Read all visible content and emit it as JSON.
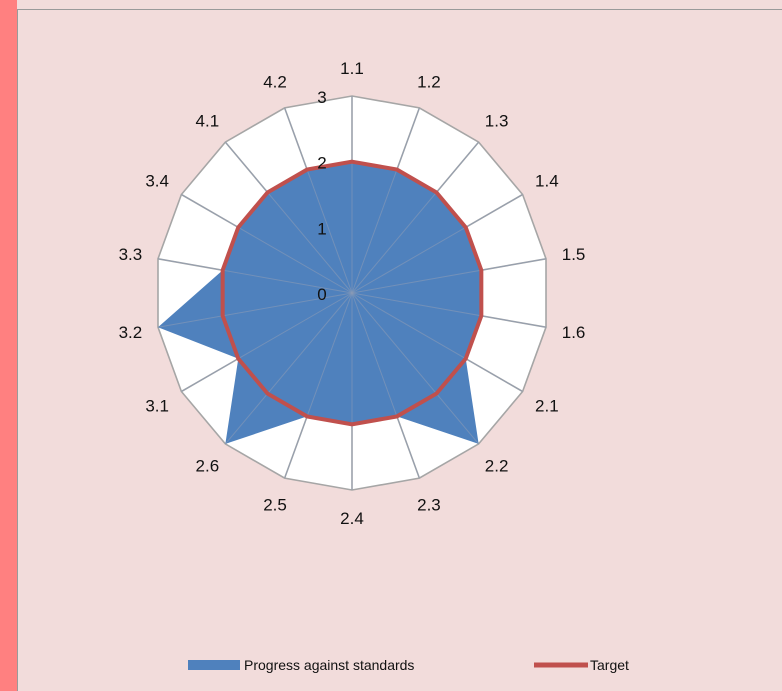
{
  "colors": {
    "background": "#f2dcdb",
    "accent_bar": "#ff8080",
    "progress_fill": "#4f81bd",
    "target_line": "#c0504d",
    "grid": "#a6a6a6"
  },
  "chart_data": {
    "type": "radar",
    "categories": [
      "1.1",
      "1.2",
      "1.3",
      "1.4",
      "1.5",
      "1.6",
      "2.1",
      "2.2",
      "2.3",
      "2.4",
      "2.5",
      "2.6",
      "3.1",
      "3.2",
      "3.3",
      "3.4",
      "4.1",
      "4.2"
    ],
    "rlim": [
      0,
      3
    ],
    "r_ticks": [
      "0",
      "1",
      "2",
      "3"
    ],
    "grid": true,
    "legend_position": "bottom",
    "series": [
      {
        "name": "Progress against standards",
        "type": "filled",
        "values": [
          2,
          2,
          2,
          2,
          2,
          2,
          2,
          3,
          2,
          2,
          2,
          3,
          2,
          3,
          2,
          2,
          2,
          2
        ]
      },
      {
        "name": "Target",
        "type": "line",
        "values": [
          2,
          2,
          2,
          2,
          2,
          2,
          2,
          2,
          2,
          2,
          2,
          2,
          2,
          2,
          2,
          2,
          2,
          2
        ]
      }
    ]
  }
}
